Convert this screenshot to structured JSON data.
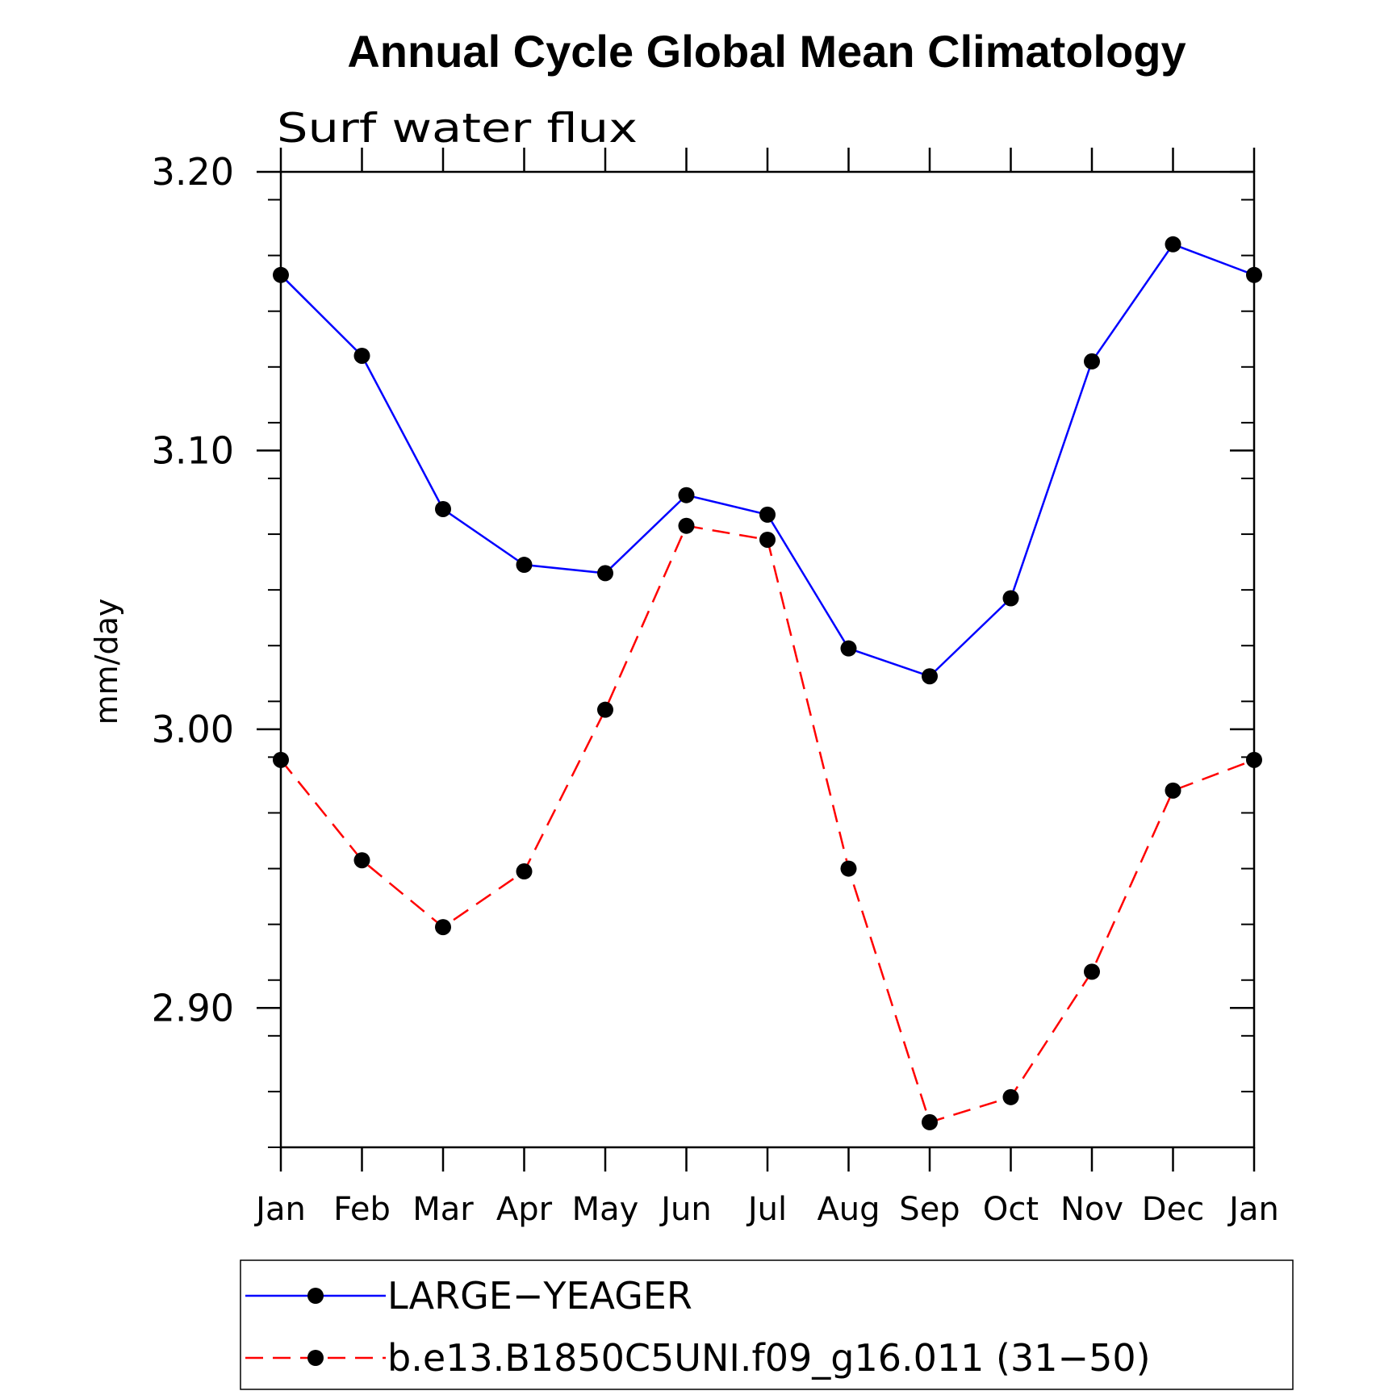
{
  "chart_data": {
    "type": "line",
    "title": "Annual Cycle Global Mean Climatology",
    "subtitle": "Surf water flux",
    "ylabel": "mm/day",
    "xlabel": "",
    "ylim": [
      2.85,
      3.2
    ],
    "yticks": [
      2.9,
      3.0,
      3.1,
      3.2
    ],
    "ytick_labels": [
      "2.90",
      "3.00",
      "3.10",
      "3.20"
    ],
    "y_minor_step": 0.02,
    "categories": [
      "Jan",
      "Feb",
      "Mar",
      "Apr",
      "May",
      "Jun",
      "Jul",
      "Aug",
      "Sep",
      "Oct",
      "Nov",
      "Dec",
      "Jan"
    ],
    "series": [
      {
        "name": "LARGE−YEAGER",
        "color": "#0000ff",
        "dashed": false,
        "values": [
          3.163,
          3.134,
          3.079,
          3.059,
          3.056,
          3.084,
          3.077,
          3.029,
          3.019,
          3.047,
          3.132,
          3.174,
          3.163
        ]
      },
      {
        "name": "b.e13.B1850C5UNI.f09_g16.011 (31−50)",
        "color": "#ff0000",
        "dashed": true,
        "values": [
          2.989,
          2.953,
          2.929,
          2.949,
          3.007,
          3.073,
          3.068,
          2.95,
          2.859,
          2.868,
          2.913,
          2.978,
          2.989
        ]
      }
    ],
    "legend_position": "bottom"
  }
}
